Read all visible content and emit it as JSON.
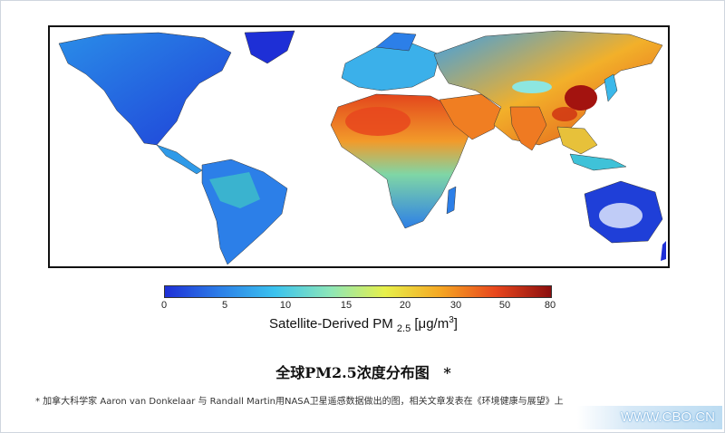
{
  "colorbar": {
    "ticks": [
      "0",
      "5",
      "10",
      "15",
      "20",
      "30",
      "50",
      "80"
    ],
    "colors": [
      "#1e2fd6",
      "#2c7fe8",
      "#3bc3ee",
      "#8de6b8",
      "#e7f04a",
      "#f5a623",
      "#e8461d",
      "#8b0e0e"
    ],
    "label_main": "Satellite-Derived PM",
    "label_sub": "2.5",
    "label_unit_prefix": "[μg/m",
    "label_unit_sup": "3",
    "label_unit_suffix": "]"
  },
  "caption": {
    "title": "全球PM2.5浓度分布图",
    "star": "*"
  },
  "footnote": "*  加拿大科学家 Aaron van Donkelaar 与 Randall Martin用NASA卫星遥感数据做出的图，相关文章发表在《环境健康与展望》上",
  "watermark": "WWW.CBO.CN",
  "map_legend": {
    "ocean": "#ffffff",
    "low": "#1e3fdc",
    "mid": "#3fb6ea",
    "high": "#f0a02a",
    "very_high": "#c8170f"
  }
}
